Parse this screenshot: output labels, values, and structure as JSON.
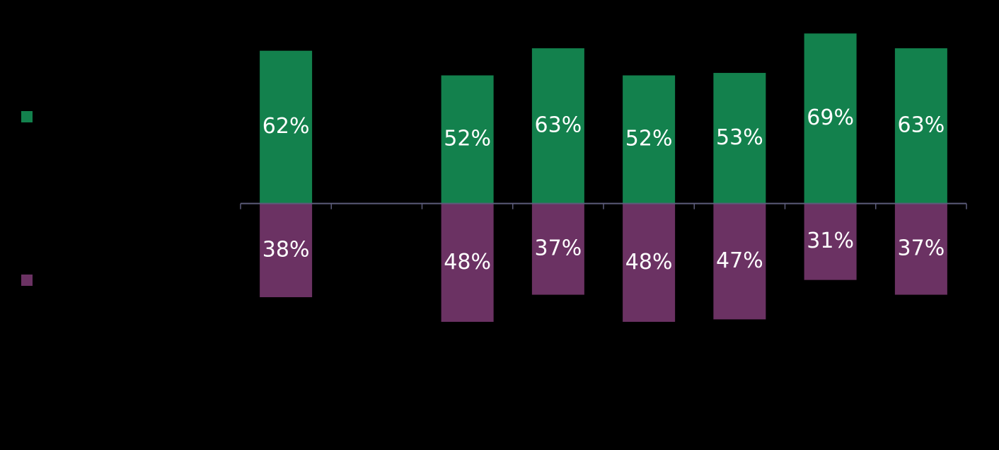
{
  "chart_data": {
    "type": "diverging-bar",
    "categories": [
      null,
      null,
      null,
      null,
      null,
      null,
      null,
      null
    ],
    "series": [
      {
        "color": "#13814d",
        "values": [
          62,
          null,
          52,
          63,
          52,
          53,
          69,
          63
        ],
        "value_labels": [
          "62%",
          null,
          "52%",
          "63%",
          "52%",
          "53%",
          "69%",
          "63%"
        ]
      },
      {
        "color": "#6b3263",
        "values": [
          38,
          null,
          48,
          37,
          48,
          47,
          31,
          37
        ],
        "value_labels": [
          "38%",
          null,
          "48%",
          "37%",
          "48%",
          "47%",
          "31%",
          "37%"
        ]
      }
    ],
    "ylim": [
      -100,
      80
    ]
  }
}
